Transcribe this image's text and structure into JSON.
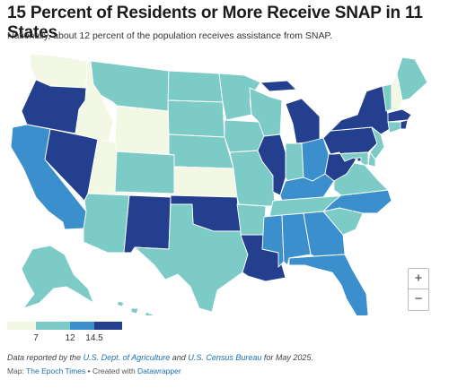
{
  "header": {
    "title": "15 Percent of Residents or More Receive SNAP in 11 States",
    "subtitle": "Nationally, about 12 percent of the  population receives assistance from SNAP."
  },
  "colors": {
    "lightest": "#f2f8e4",
    "light": "#7ccbc6",
    "medium": "#3a8fcc",
    "dark": "#243f8d",
    "border": "#ffffff"
  },
  "legend": {
    "segments": [
      "#f2f8e4",
      "#7ccbc6",
      "#3a8fcc",
      "#243f8d"
    ],
    "ticks": [
      "7",
      "12",
      "14.5"
    ]
  },
  "zoom": {
    "in_label": "+",
    "out_label": "−"
  },
  "footer": {
    "note_prefix": "Data reported by the ",
    "note_link1": "U.S. Dept. of Agriculture",
    "note_mid": " and ",
    "note_link2": "U.S. Census Bureau",
    "note_suffix": " for May 2025.",
    "credit_prefix": "Map: ",
    "credit_link1": "The Epoch Times",
    "credit_mid": " • Created with ",
    "credit_link2": "Datawrapper"
  },
  "states": [
    {
      "id": "WA",
      "tier": "lightest"
    },
    {
      "id": "OR",
      "tier": "dark"
    },
    {
      "id": "CA",
      "tier": "medium"
    },
    {
      "id": "NV",
      "tier": "dark"
    },
    {
      "id": "ID",
      "tier": "lightest"
    },
    {
      "id": "UT",
      "tier": "lightest"
    },
    {
      "id": "AZ",
      "tier": "light"
    },
    {
      "id": "MT",
      "tier": "light"
    },
    {
      "id": "WY",
      "tier": "lightest"
    },
    {
      "id": "CO",
      "tier": "light"
    },
    {
      "id": "NM",
      "tier": "dark"
    },
    {
      "id": "ND",
      "tier": "light"
    },
    {
      "id": "SD",
      "tier": "light"
    },
    {
      "id": "NE",
      "tier": "light"
    },
    {
      "id": "KS",
      "tier": "lightest"
    },
    {
      "id": "OK",
      "tier": "dark"
    },
    {
      "id": "TX",
      "tier": "light"
    },
    {
      "id": "MN",
      "tier": "light"
    },
    {
      "id": "IA",
      "tier": "light"
    },
    {
      "id": "MO",
      "tier": "light"
    },
    {
      "id": "AR",
      "tier": "light"
    },
    {
      "id": "LA",
      "tier": "dark"
    },
    {
      "id": "WI",
      "tier": "light"
    },
    {
      "id": "IL",
      "tier": "dark"
    },
    {
      "id": "MI",
      "tier": "dark"
    },
    {
      "id": "IN",
      "tier": "light"
    },
    {
      "id": "OH",
      "tier": "medium"
    },
    {
      "id": "KY",
      "tier": "medium"
    },
    {
      "id": "TN",
      "tier": "light"
    },
    {
      "id": "MS",
      "tier": "medium"
    },
    {
      "id": "AL",
      "tier": "medium"
    },
    {
      "id": "GA",
      "tier": "medium"
    },
    {
      "id": "FL",
      "tier": "medium"
    },
    {
      "id": "SC",
      "tier": "light"
    },
    {
      "id": "NC",
      "tier": "medium"
    },
    {
      "id": "VA",
      "tier": "light"
    },
    {
      "id": "WV",
      "tier": "dark"
    },
    {
      "id": "PA",
      "tier": "dark"
    },
    {
      "id": "NY",
      "tier": "dark"
    },
    {
      "id": "VT",
      "tier": "light"
    },
    {
      "id": "NH",
      "tier": "lightest"
    },
    {
      "id": "ME",
      "tier": "light"
    },
    {
      "id": "MA",
      "tier": "dark"
    },
    {
      "id": "RI",
      "tier": "dark"
    },
    {
      "id": "CT",
      "tier": "light"
    },
    {
      "id": "NJ",
      "tier": "light"
    },
    {
      "id": "DE",
      "tier": "light"
    },
    {
      "id": "MD",
      "tier": "light"
    },
    {
      "id": "DC",
      "tier": "dark"
    },
    {
      "id": "AK",
      "tier": "light"
    },
    {
      "id": "HI",
      "tier": "light"
    }
  ]
}
